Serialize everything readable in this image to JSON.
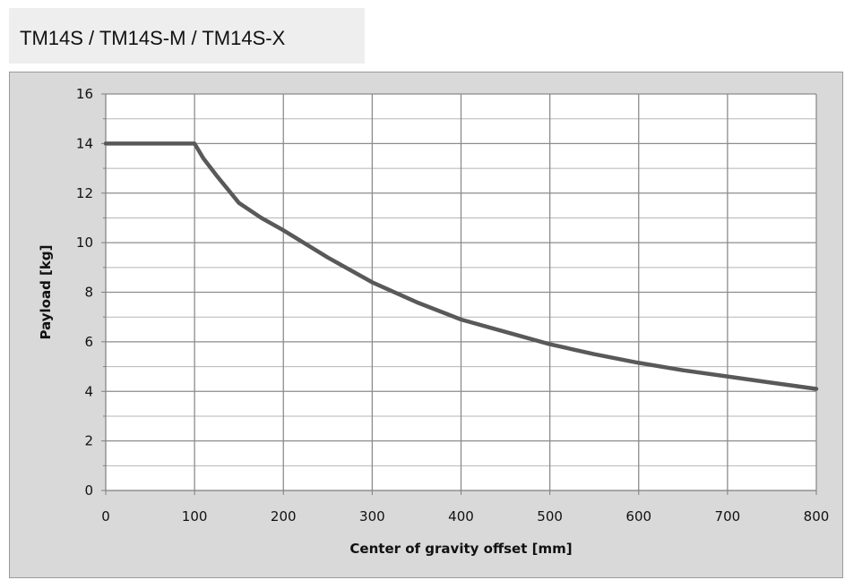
{
  "header": {
    "title": "TM14S / TM14S-M / TM14S-X"
  },
  "chart_data": {
    "type": "line",
    "title": "",
    "xlabel": "Center of gravity offset [mm]",
    "ylabel": "Payload [kg]",
    "xlim": [
      0,
      800
    ],
    "ylim": [
      0,
      16
    ],
    "x_ticks": [
      "0",
      "100",
      "200",
      "300",
      "400",
      "500",
      "600",
      "700",
      "800"
    ],
    "y_ticks": [
      "0",
      "2",
      "4",
      "6",
      "8",
      "10",
      "12",
      "14",
      "16"
    ],
    "grid": true,
    "legend": "none",
    "series": [
      {
        "color": "#595959",
        "points": [
          [
            0,
            14.0
          ],
          [
            100,
            14.0
          ],
          [
            110,
            13.4
          ],
          [
            125,
            12.7
          ],
          [
            150,
            11.6
          ],
          [
            175,
            11.0
          ],
          [
            200,
            10.5
          ],
          [
            250,
            9.4
          ],
          [
            300,
            8.4
          ],
          [
            350,
            7.6
          ],
          [
            400,
            6.9
          ],
          [
            450,
            6.4
          ],
          [
            500,
            5.9
          ],
          [
            550,
            5.5
          ],
          [
            600,
            5.15
          ],
          [
            650,
            4.85
          ],
          [
            700,
            4.6
          ],
          [
            750,
            4.35
          ],
          [
            800,
            4.1
          ]
        ]
      }
    ]
  }
}
